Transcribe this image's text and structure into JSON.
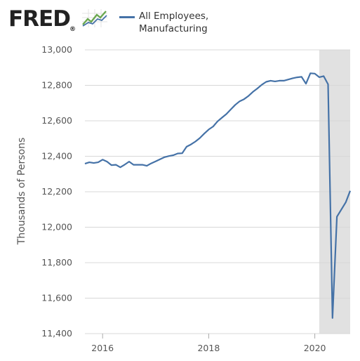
{
  "brand": {
    "logo_text": "FRED",
    "registered_mark": "®",
    "logo_icon": "fred-chart-icon"
  },
  "colors": {
    "series": "#4572a7",
    "recession_shade": "#e1e1e1",
    "grid": "#d8d8d8",
    "axis_text": "#555555"
  },
  "chart_data": {
    "type": "line",
    "title": "",
    "xlabel": "",
    "ylabel": "Thousands of Persons",
    "ylim": [
      11400,
      13000
    ],
    "yticks": [
      11400,
      11600,
      11800,
      12000,
      12200,
      12400,
      12600,
      12800,
      13000
    ],
    "ytick_labels": [
      "11,400",
      "11,600",
      "11,800",
      "12,000",
      "12,200",
      "12,400",
      "12,600",
      "12,800",
      "13,000"
    ],
    "xlim": [
      "2015-09",
      "2020-09"
    ],
    "xticks": [
      "2016-01",
      "2018-01",
      "2020-01"
    ],
    "xtick_labels": [
      "2016",
      "2018",
      "2020"
    ],
    "grid": "horizontal",
    "legend_position": "top",
    "recession_shading": [
      {
        "start": "2020-02",
        "end": "2020-09"
      }
    ],
    "series": [
      {
        "name": "All Employees,\nManufacturing",
        "legend_lines": [
          "All Employees,",
          "Manufacturing"
        ],
        "x": [
          "2015-09",
          "2015-10",
          "2015-11",
          "2015-12",
          "2016-01",
          "2016-02",
          "2016-03",
          "2016-04",
          "2016-05",
          "2016-06",
          "2016-07",
          "2016-08",
          "2016-09",
          "2016-10",
          "2016-11",
          "2016-12",
          "2017-01",
          "2017-02",
          "2017-03",
          "2017-04",
          "2017-05",
          "2017-06",
          "2017-07",
          "2017-08",
          "2017-09",
          "2017-10",
          "2017-11",
          "2017-12",
          "2018-01",
          "2018-02",
          "2018-03",
          "2018-04",
          "2018-05",
          "2018-06",
          "2018-07",
          "2018-08",
          "2018-09",
          "2018-10",
          "2018-11",
          "2018-12",
          "2019-01",
          "2019-02",
          "2019-03",
          "2019-04",
          "2019-05",
          "2019-06",
          "2019-07",
          "2019-08",
          "2019-09",
          "2019-10",
          "2019-11",
          "2019-12",
          "2020-01",
          "2020-02",
          "2020-03",
          "2020-04",
          "2020-05",
          "2020-06",
          "2020-07",
          "2020-08",
          "2020-09"
        ],
        "values": [
          12358,
          12366,
          12362,
          12366,
          12381,
          12370,
          12350,
          12352,
          12338,
          12353,
          12370,
          12352,
          12352,
          12352,
          12346,
          12360,
          12371,
          12383,
          12395,
          12401,
          12406,
          12416,
          12417,
          12454,
          12467,
          12483,
          12503,
          12528,
          12551,
          12568,
          12597,
          12618,
          12638,
          12664,
          12690,
          12710,
          12722,
          12740,
          12763,
          12782,
          12803,
          12820,
          12826,
          12822,
          12826,
          12826,
          12833,
          12840,
          12845,
          12848,
          12809,
          12868,
          12866,
          12846,
          12852,
          12806,
          11488,
          12059,
          12100,
          12140,
          12205
        ]
      }
    ]
  }
}
